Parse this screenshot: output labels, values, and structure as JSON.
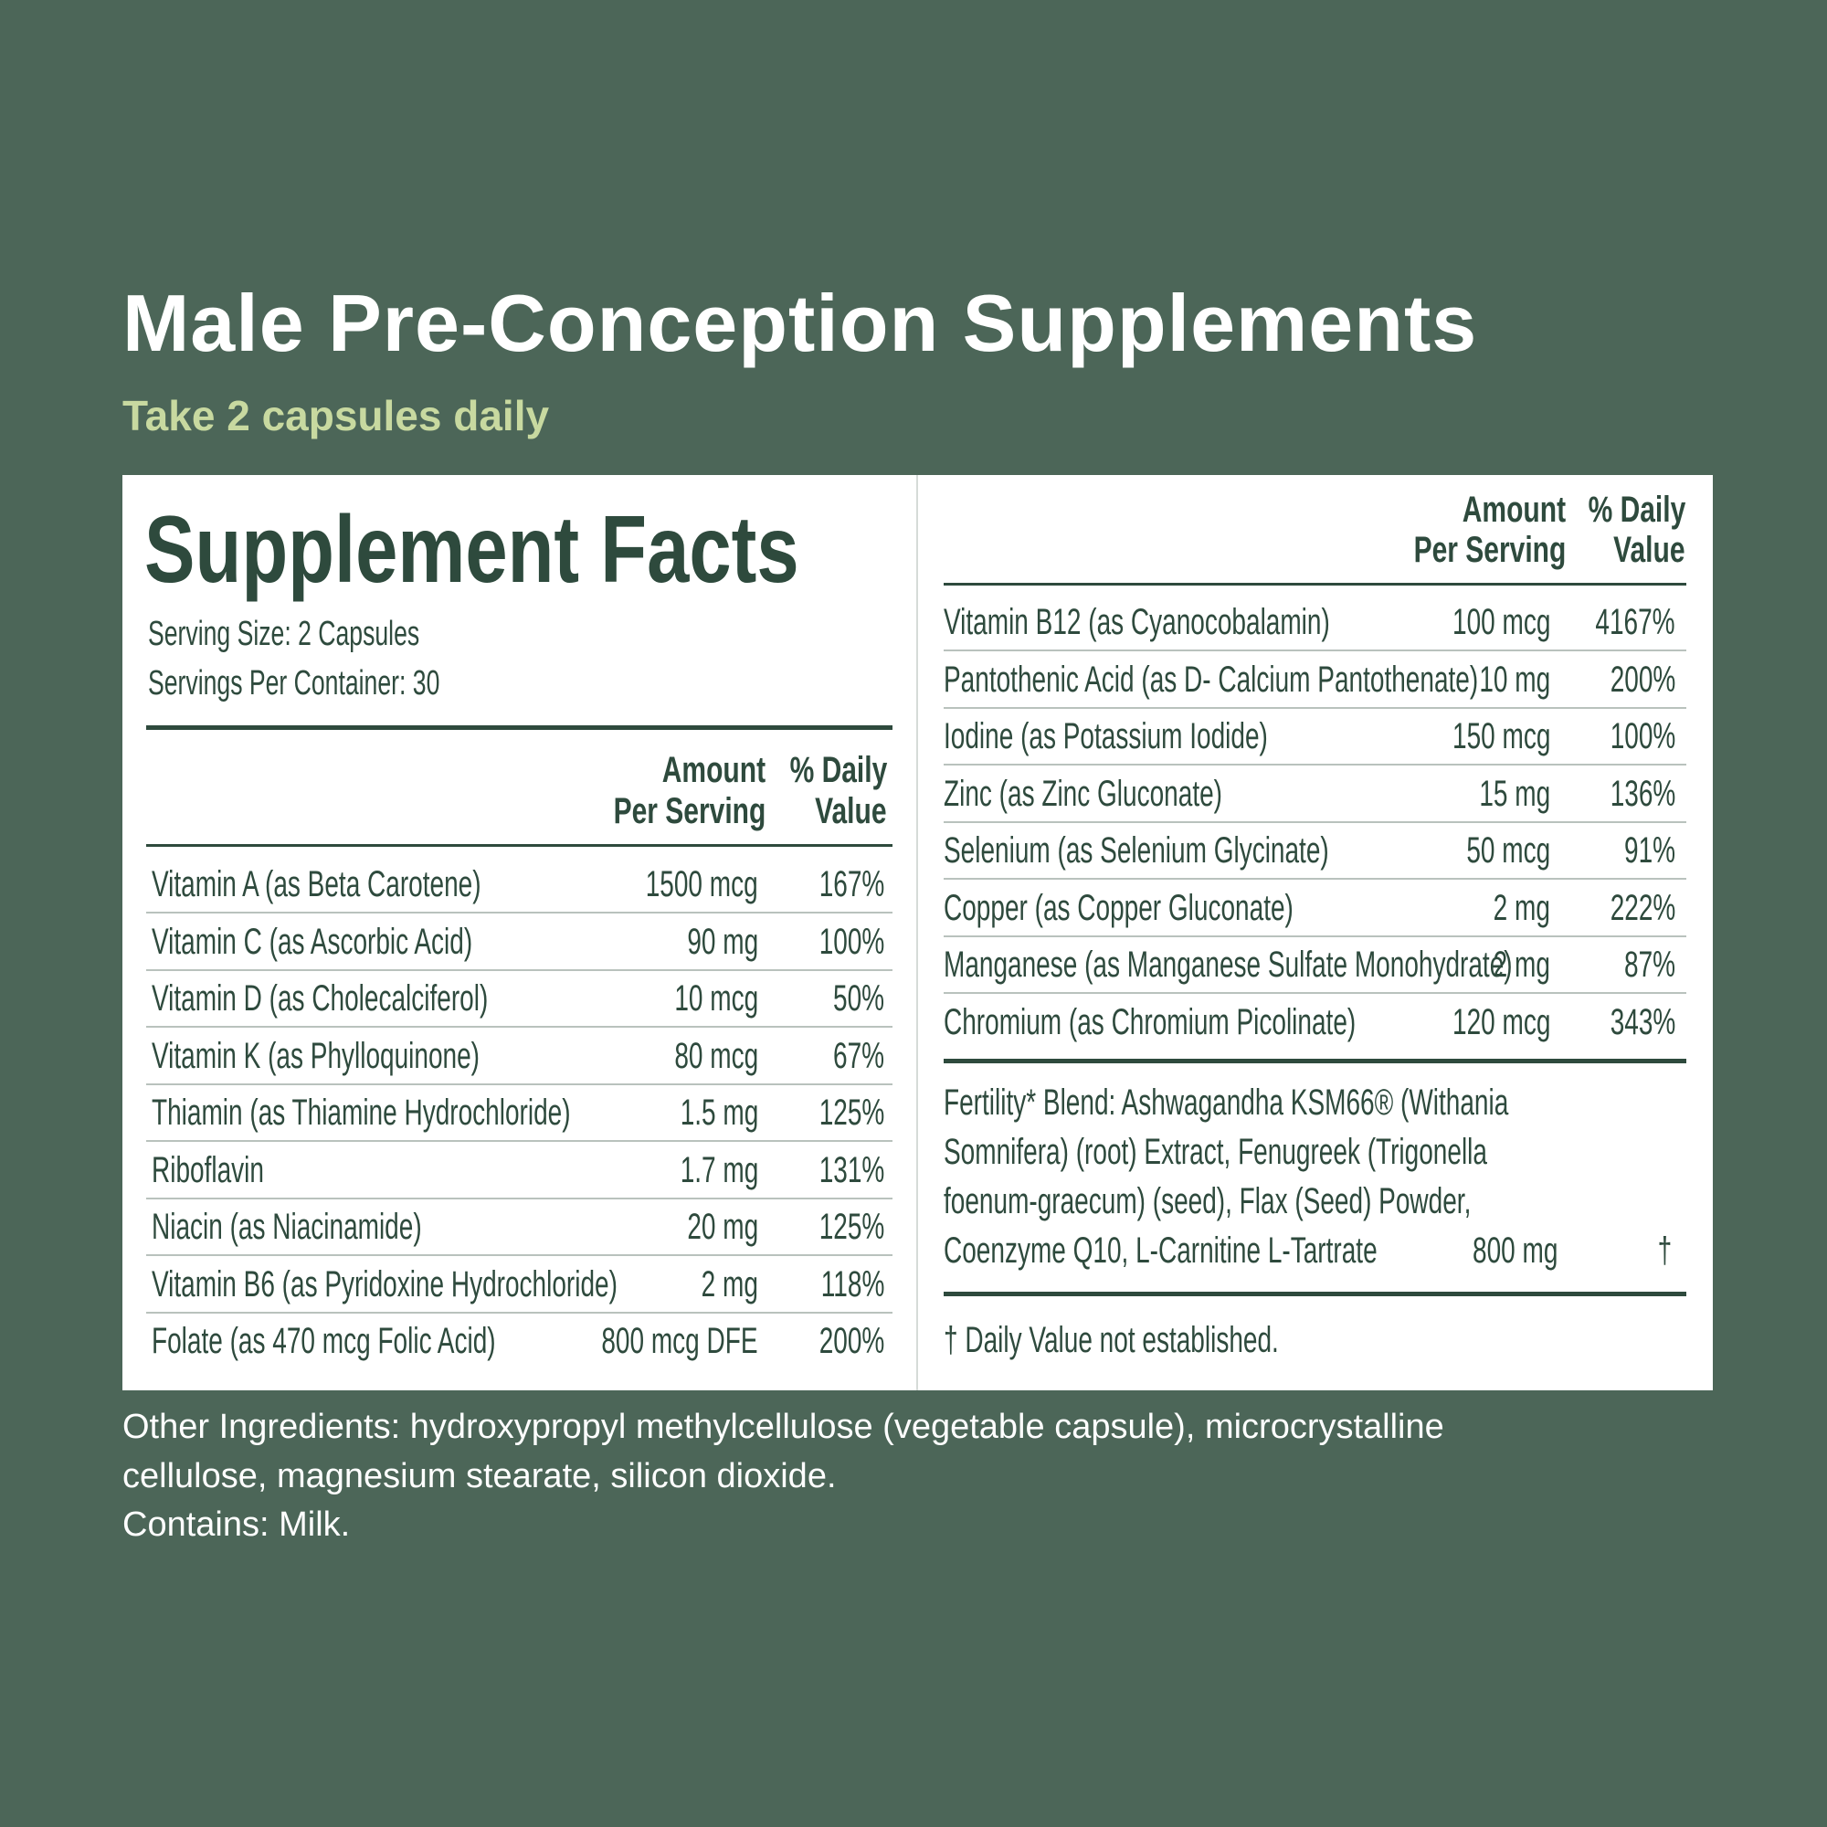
{
  "header": {
    "title": "Male Pre-Conception Supplements",
    "subtitle": "Take 2 capsules daily"
  },
  "facts": {
    "title": "Supplement Facts",
    "serving_size": "Serving Size: 2 Capsules",
    "servings_per_container": "Servings Per Container: 30",
    "column_headers": {
      "amount": [
        "Amount",
        "Per Serving"
      ],
      "daily_value": [
        "% Daily",
        "Value"
      ]
    },
    "left_rows": [
      [
        "Vitamin A (as Beta Carotene)",
        "1500 mcg",
        "167%"
      ],
      [
        "Vitamin C (as Ascorbic Acid)",
        "90 mg",
        "100%"
      ],
      [
        "Vitamin D (as Cholecalciferol)",
        "10 mcg",
        "50%"
      ],
      [
        "Vitamin K (as Phylloquinone)",
        "80 mcg",
        "67%"
      ],
      [
        "Thiamin (as Thiamine Hydrochloride)",
        "1.5 mg",
        "125%"
      ],
      [
        "Riboflavin",
        "1.7 mg",
        "131%"
      ],
      [
        "Niacin (as Niacinamide)",
        "20 mg",
        "125%"
      ],
      [
        "Vitamin B6 (as Pyridoxine Hydrochloride)",
        "2 mg",
        "118%"
      ],
      [
        "Folate (as 470 mcg Folic Acid)",
        "800 mcg DFE",
        "200%"
      ]
    ],
    "right_rows": [
      [
        "Vitamin B12 (as Cyanocobalamin)",
        "100 mcg",
        "4167%"
      ],
      [
        "Pantothenic Acid (as D- Calcium Pantothenate)",
        "10 mg",
        "200%"
      ],
      [
        "Iodine (as Potassium Iodide)",
        "150 mcg",
        "100%"
      ],
      [
        "Zinc (as Zinc Gluconate)",
        "15 mg",
        "136%"
      ],
      [
        "Selenium (as Selenium Glycinate)",
        "50 mcg",
        "91%"
      ],
      [
        "Copper (as Copper Gluconate)",
        "2 mg",
        "222%"
      ],
      [
        "Manganese (as Manganese Sulfate Monohydrate)",
        "2 mg",
        "87%"
      ],
      [
        "Chromium (as Chromium Picolinate)",
        "120 mcg",
        "343%"
      ]
    ],
    "blend": {
      "lines": [
        "Fertility* Blend: Ashwagandha KSM66® (Withania",
        "Somnifera) (root) Extract, Fenugreek (Trigonella",
        "foenum-graecum) (seed), Flax (Seed) Powder,",
        "Coenzyme Q10, L-Carnitine L-Tartrate"
      ],
      "amount": "800 mg",
      "daily_value": "†"
    },
    "footnote": "† Daily Value not established."
  },
  "other_ingredients": [
    "Other Ingredients: hydroxypropyl methylcellulose (vegetable capsule), microcrystalline",
    "cellulose, magnesium stearate, silicon dioxide."
  ],
  "contains": "Contains: Milk."
}
